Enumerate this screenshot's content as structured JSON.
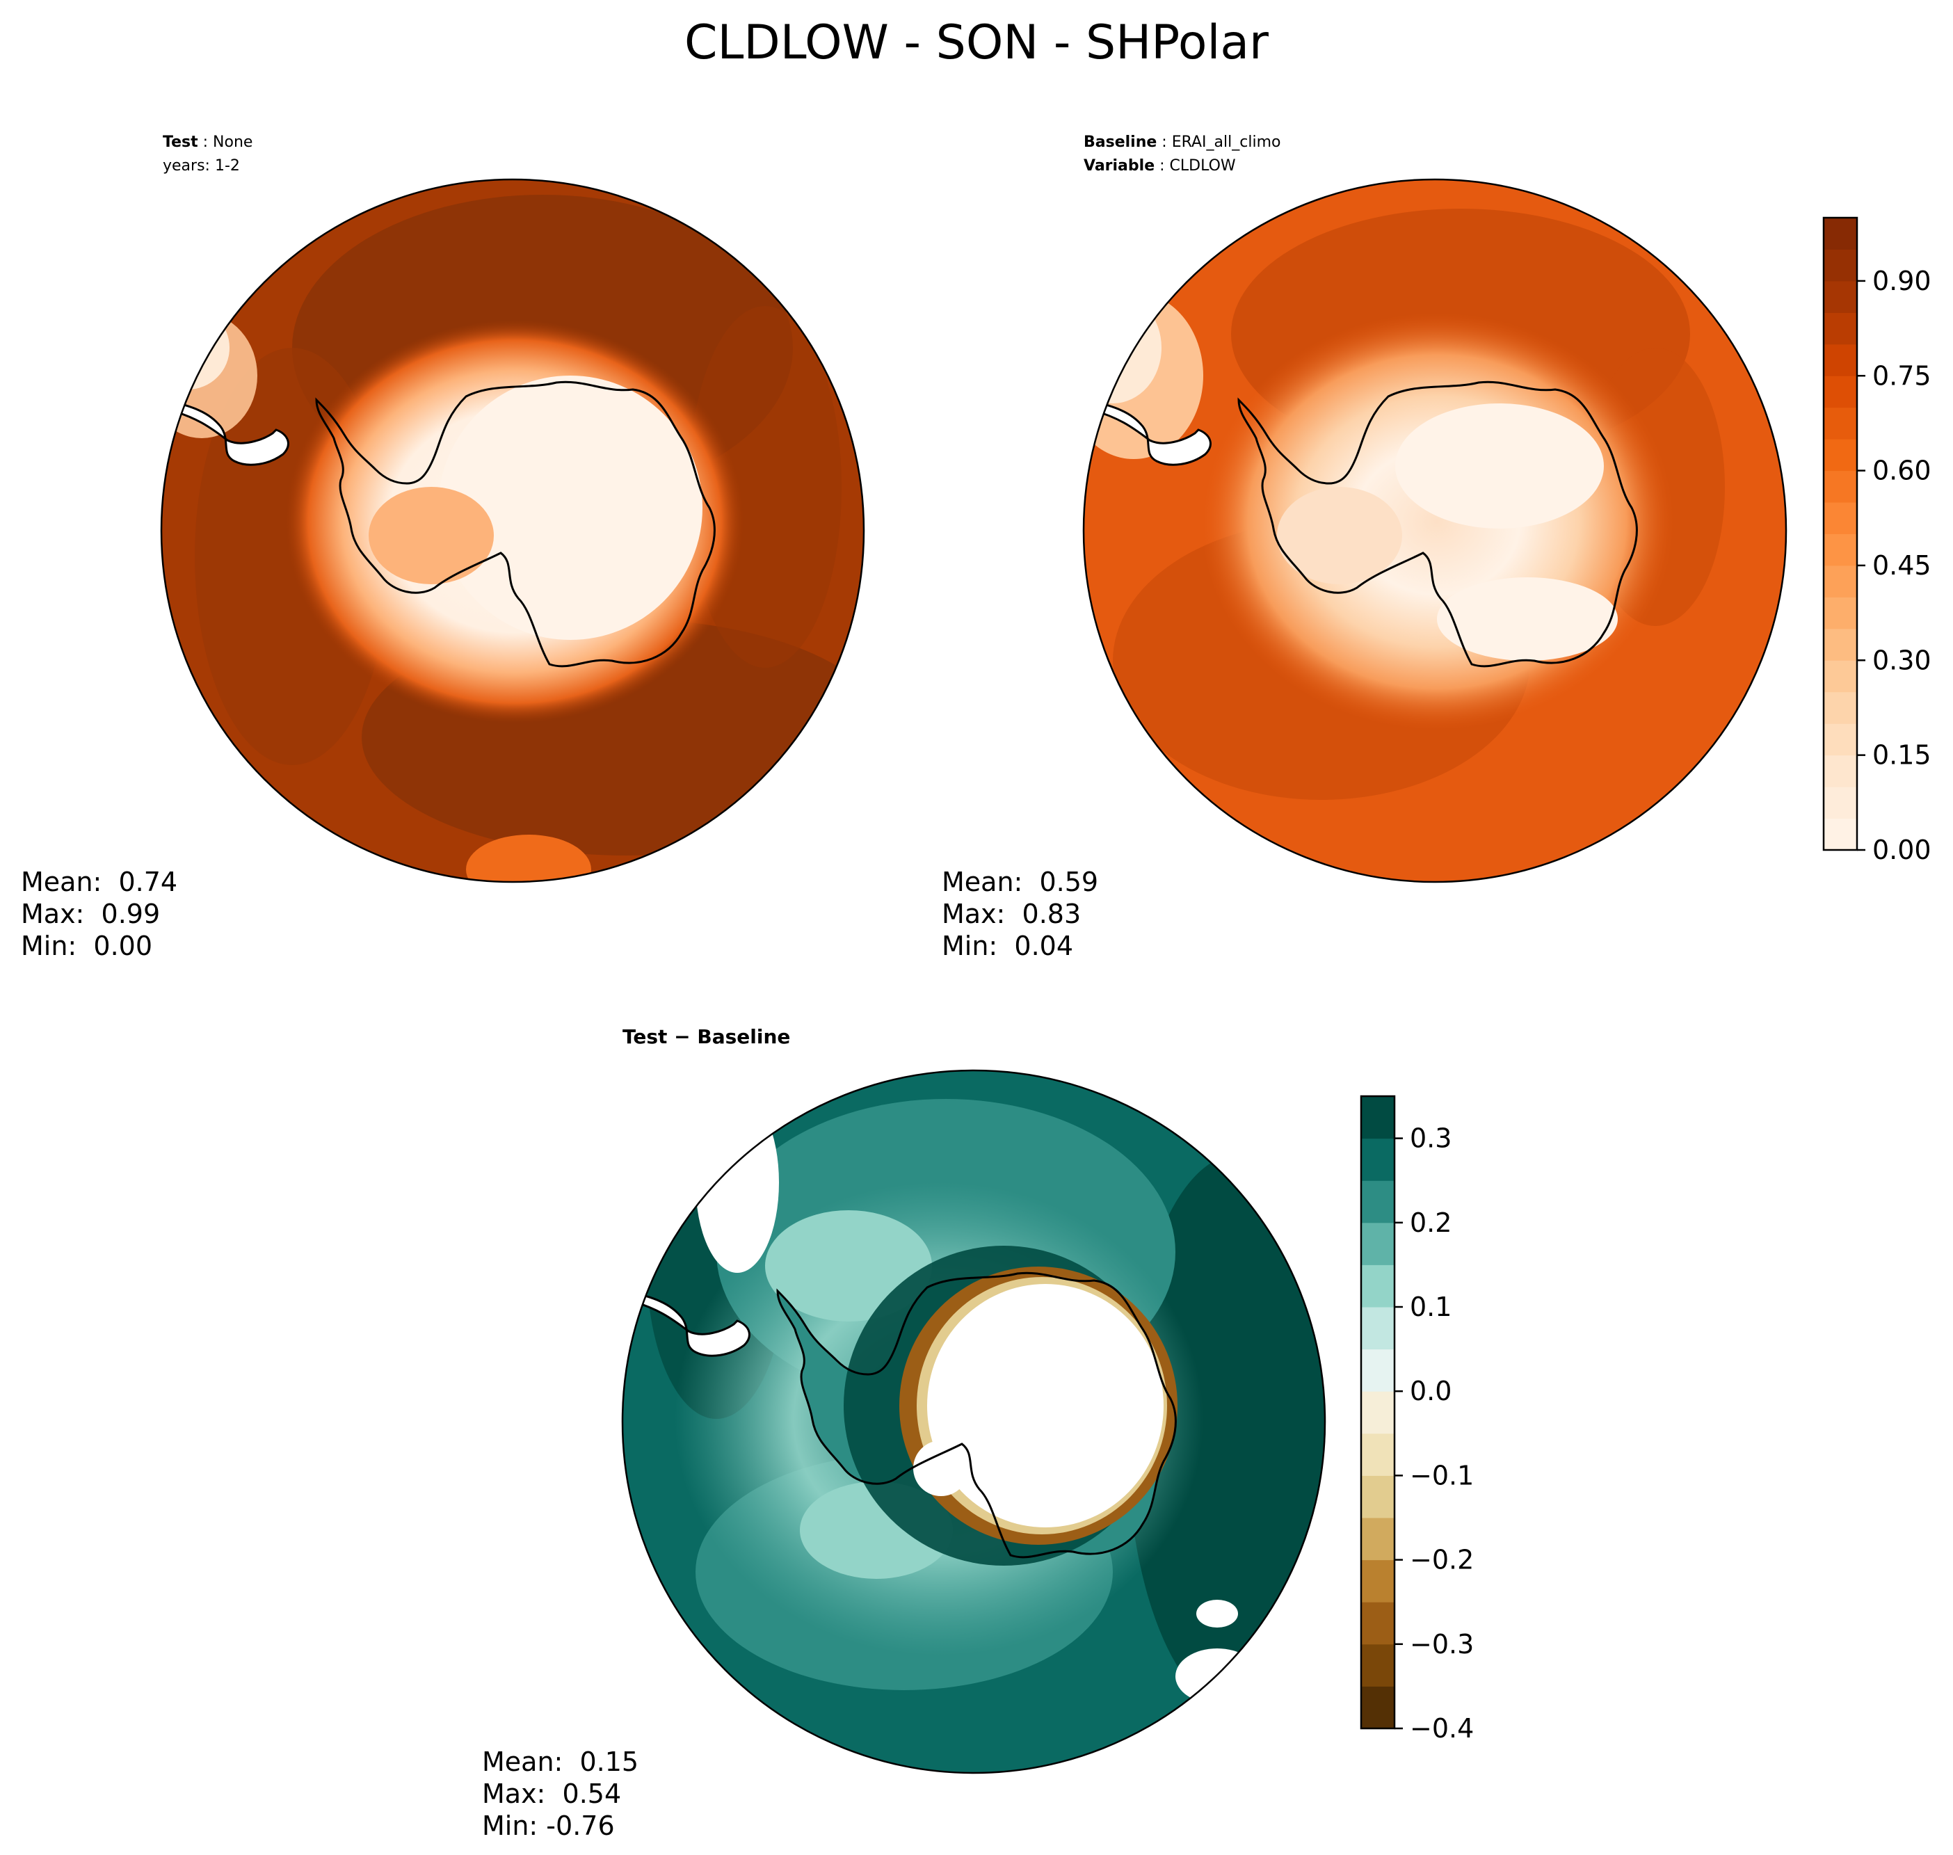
{
  "suptitle": "CLDLOW - SON - SHPolar",
  "panels": {
    "test": {
      "label_key": "Test",
      "label_value": "None",
      "line2": "years: 1-2",
      "stats": {
        "mean": "Mean:  0.74",
        "max": "Max:  0.99",
        "min": "Min:  0.00"
      }
    },
    "baseline": {
      "label_key": "Baseline",
      "label_value": "ERAI_all_climo",
      "var_key": "Variable",
      "var_value": "CLDLOW",
      "stats": {
        "mean": "Mean:  0.59",
        "max": "Max:  0.83",
        "min": "Min:  0.04"
      }
    },
    "diff": {
      "title": "Test − Baseline",
      "stats": {
        "mean": "Mean:  0.15",
        "max": "Max:  0.54",
        "min": "Min: -0.76"
      }
    }
  },
  "chart_data": [
    {
      "type": "heatmap",
      "panel": "test",
      "projection": "south-polar-stereographic",
      "colormap": "Oranges",
      "mean": 0.74,
      "max": 0.99,
      "min": 0.0,
      "ocean_level": 0.87,
      "antarctica_level": 0.02
    },
    {
      "type": "heatmap",
      "panel": "baseline",
      "projection": "south-polar-stereographic",
      "colormap": "Oranges",
      "mean": 0.59,
      "max": 0.83,
      "min": 0.04,
      "ocean_level": 0.68,
      "antarctica_level": 0.08,
      "colorbar": {
        "range": [
          0.0,
          1.0
        ],
        "ticks": [
          0.0,
          0.15,
          0.3,
          0.45,
          0.6,
          0.75,
          0.9
        ],
        "tick_labels": [
          "0.00",
          "0.15",
          "0.30",
          "0.45",
          "0.60",
          "0.75",
          "0.90"
        ],
        "n_levels": 20
      }
    },
    {
      "type": "heatmap",
      "panel": "diff",
      "projection": "south-polar-stereographic",
      "colormap": "BrBG",
      "mean": 0.15,
      "max": 0.54,
      "min": -0.76,
      "colorbar": {
        "range": [
          -0.4,
          0.35
        ],
        "ticks": [
          -0.4,
          -0.3,
          -0.2,
          -0.1,
          0.0,
          0.1,
          0.2,
          0.3
        ],
        "tick_labels": [
          "−0.4",
          "−0.3",
          "−0.2",
          "−0.1",
          "0.0",
          "0.1",
          "0.2",
          "0.3"
        ],
        "level_colors": [
          "#543005",
          "#7a4709",
          "#9c5e16",
          "#ba812f",
          "#d1aa5e",
          "#e2cc8f",
          "#f0e2b8",
          "#f6eed8",
          "#e6f3f1",
          "#c2e7e1",
          "#93d4c8",
          "#5fb3a8",
          "#2d8d84",
          "#0a6a62",
          "#014b42"
        ]
      }
    }
  ],
  "colors": {
    "test_ocean": "#8f3406",
    "test_ocean_alt": "#a63a04",
    "baseline_ocean": "#e55a10",
    "baseline_ocean_alt": "#cf4d0a",
    "ice_light": "#fff4ea",
    "diff_ocean": "#0a6a62",
    "diff_dark": "#014b42",
    "diff_light": "#93d4c8",
    "diff_brown": "#9c5e16"
  }
}
